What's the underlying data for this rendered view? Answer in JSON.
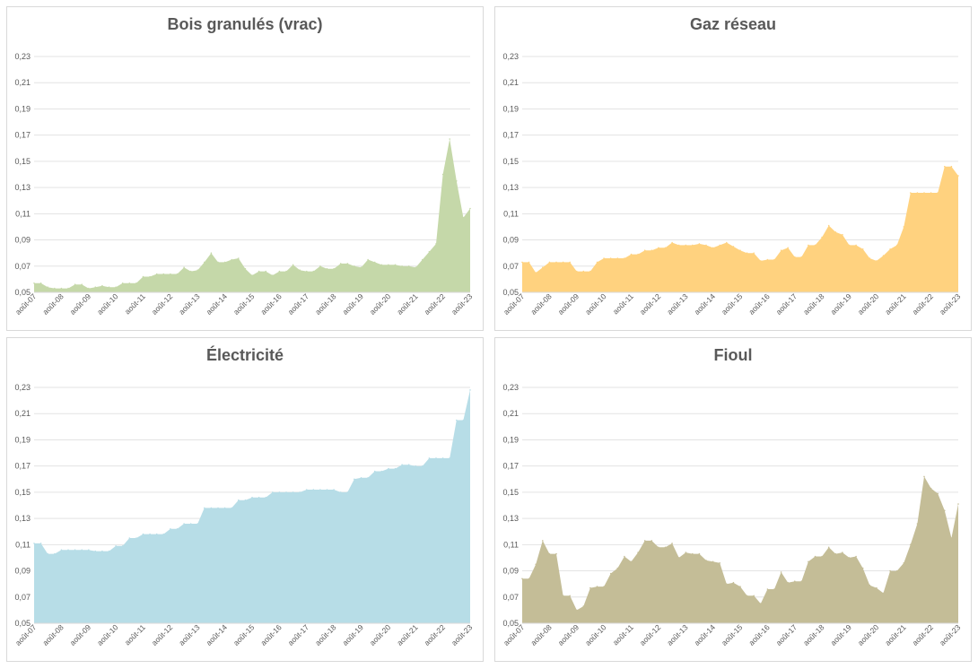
{
  "chart_data": [
    {
      "type": "area",
      "title": "Bois granulés (vrac)",
      "color": "#c5d8a9",
      "ylim": [
        0.05,
        0.23
      ],
      "yticks": [
        "0,05",
        "0,07",
        "0,09",
        "0,11",
        "0,13",
        "0,15",
        "0,17",
        "0,19",
        "0,21",
        "0,23"
      ],
      "xticks": [
        "août-07",
        "août-08",
        "août-09",
        "août-10",
        "août-11",
        "août-12",
        "août-13",
        "août-14",
        "août-15",
        "août-16",
        "août-17",
        "août-18",
        "août-19",
        "août-20",
        "août-21",
        "août-22",
        "août-23"
      ],
      "grid": true,
      "x": [
        0,
        0.25,
        0.5,
        0.75,
        1,
        1.25,
        1.5,
        1.75,
        2,
        2.25,
        2.5,
        2.75,
        3,
        3.25,
        3.5,
        3.75,
        4,
        4.25,
        4.5,
        4.75,
        5,
        5.25,
        5.5,
        5.75,
        6,
        6.25,
        6.5,
        6.75,
        7,
        7.25,
        7.5,
        7.75,
        8,
        8.25,
        8.5,
        8.75,
        9,
        9.25,
        9.5,
        9.75,
        10,
        10.25,
        10.5,
        10.75,
        11,
        11.25,
        11.5,
        11.75,
        12,
        12.25,
        12.5,
        12.75,
        13,
        13.25,
        13.5,
        13.75,
        14,
        14.25,
        14.5,
        14.75,
        15,
        15.25,
        15.5,
        15.75,
        16
      ],
      "values": [
        0.057,
        0.057,
        0.054,
        0.053,
        0.053,
        0.053,
        0.056,
        0.056,
        0.053,
        0.054,
        0.055,
        0.054,
        0.054,
        0.057,
        0.057,
        0.057,
        0.062,
        0.062,
        0.064,
        0.064,
        0.064,
        0.064,
        0.069,
        0.066,
        0.067,
        0.073,
        0.08,
        0.073,
        0.073,
        0.075,
        0.076,
        0.068,
        0.063,
        0.066,
        0.066,
        0.063,
        0.066,
        0.066,
        0.071,
        0.067,
        0.066,
        0.066,
        0.07,
        0.068,
        0.068,
        0.072,
        0.072,
        0.07,
        0.069,
        0.075,
        0.073,
        0.071,
        0.071,
        0.071,
        0.07,
        0.07,
        0.069,
        0.075,
        0.081,
        0.087,
        0.14,
        0.167,
        0.135,
        0.107,
        0.114
      ]
    },
    {
      "type": "area",
      "title": "Gaz réseau",
      "color": "#ffd27f",
      "ylim": [
        0.05,
        0.23
      ],
      "yticks": [
        "0,05",
        "0,07",
        "0,09",
        "0,11",
        "0,13",
        "0,15",
        "0,17",
        "0,19",
        "0,21",
        "0,23"
      ],
      "xticks": [
        "août-07",
        "août-08",
        "août-09",
        "août-10",
        "août-11",
        "août-12",
        "août-13",
        "août-14",
        "août-15",
        "août-16",
        "août-17",
        "août-18",
        "août-19",
        "août-20",
        "août-21",
        "août-22",
        "août-23"
      ],
      "grid": true,
      "x": [
        0,
        0.25,
        0.5,
        0.75,
        1,
        1.25,
        1.5,
        1.75,
        2,
        2.25,
        2.5,
        2.75,
        3,
        3.25,
        3.5,
        3.75,
        4,
        4.25,
        4.5,
        4.75,
        5,
        5.25,
        5.5,
        5.75,
        6,
        6.25,
        6.5,
        6.75,
        7,
        7.25,
        7.5,
        7.75,
        8,
        8.25,
        8.5,
        8.75,
        9,
        9.25,
        9.5,
        9.75,
        10,
        10.25,
        10.5,
        10.75,
        11,
        11.25,
        11.5,
        11.75,
        12,
        12.25,
        12.5,
        12.75,
        13,
        13.25,
        13.5,
        13.75,
        14,
        14.25,
        14.5,
        14.75,
        15,
        15.25,
        15.5,
        15.75,
        16
      ],
      "values": [
        0.073,
        0.073,
        0.065,
        0.069,
        0.073,
        0.073,
        0.073,
        0.073,
        0.066,
        0.066,
        0.066,
        0.073,
        0.076,
        0.076,
        0.076,
        0.076,
        0.079,
        0.079,
        0.082,
        0.082,
        0.084,
        0.084,
        0.088,
        0.086,
        0.086,
        0.086,
        0.087,
        0.086,
        0.084,
        0.086,
        0.088,
        0.085,
        0.082,
        0.08,
        0.08,
        0.074,
        0.075,
        0.075,
        0.082,
        0.084,
        0.077,
        0.077,
        0.086,
        0.086,
        0.092,
        0.101,
        0.096,
        0.094,
        0.086,
        0.086,
        0.083,
        0.076,
        0.074,
        0.078,
        0.083,
        0.086,
        0.1,
        0.126,
        0.126,
        0.126,
        0.126,
        0.126,
        0.146,
        0.146,
        0.139
      ]
    },
    {
      "type": "area",
      "title": "Électricité",
      "color": "#b7dde7",
      "ylim": [
        0.05,
        0.23
      ],
      "yticks": [
        "0,05",
        "0,07",
        "0,09",
        "0,11",
        "0,13",
        "0,15",
        "0,17",
        "0,19",
        "0,21",
        "0,23"
      ],
      "xticks": [
        "août-07",
        "août-08",
        "août-09",
        "août-10",
        "août-11",
        "août-12",
        "août-13",
        "août-14",
        "août-15",
        "août-16",
        "août-17",
        "août-18",
        "août-19",
        "août-20",
        "août-21",
        "août-22",
        "août-23"
      ],
      "grid": true,
      "x": [
        0,
        0.25,
        0.5,
        0.75,
        1,
        1.25,
        1.5,
        1.75,
        2,
        2.25,
        2.5,
        2.75,
        3,
        3.25,
        3.5,
        3.75,
        4,
        4.25,
        4.5,
        4.75,
        5,
        5.25,
        5.5,
        5.75,
        6,
        6.25,
        6.5,
        6.75,
        7,
        7.25,
        7.5,
        7.75,
        8,
        8.25,
        8.5,
        8.75,
        9,
        9.25,
        9.5,
        9.75,
        10,
        10.25,
        10.5,
        10.75,
        11,
        11.25,
        11.5,
        11.75,
        12,
        12.25,
        12.5,
        12.75,
        13,
        13.25,
        13.5,
        13.75,
        14,
        14.25,
        14.5,
        14.75,
        15,
        15.25,
        15.5,
        15.75,
        16
      ],
      "values": [
        0.111,
        0.111,
        0.103,
        0.103,
        0.106,
        0.106,
        0.106,
        0.106,
        0.106,
        0.105,
        0.105,
        0.105,
        0.109,
        0.109,
        0.115,
        0.115,
        0.118,
        0.118,
        0.118,
        0.118,
        0.122,
        0.122,
        0.126,
        0.126,
        0.126,
        0.138,
        0.138,
        0.138,
        0.138,
        0.138,
        0.144,
        0.144,
        0.146,
        0.146,
        0.146,
        0.15,
        0.15,
        0.15,
        0.15,
        0.15,
        0.152,
        0.152,
        0.152,
        0.152,
        0.152,
        0.15,
        0.15,
        0.16,
        0.161,
        0.161,
        0.166,
        0.166,
        0.168,
        0.168,
        0.171,
        0.171,
        0.17,
        0.17,
        0.176,
        0.176,
        0.176,
        0.176,
        0.205,
        0.205,
        0.228
      ]
    },
    {
      "type": "area",
      "title": "Fioul",
      "color": "#c4bd97",
      "ylim": [
        0.05,
        0.23
      ],
      "yticks": [
        "0,05",
        "0,07",
        "0,09",
        "0,11",
        "0,13",
        "0,15",
        "0,17",
        "0,19",
        "0,21",
        "0,23"
      ],
      "xticks": [
        "août-07",
        "août-08",
        "août-09",
        "août-10",
        "août-11",
        "août-12",
        "août-13",
        "août-14",
        "août-15",
        "août-16",
        "août-17",
        "août-18",
        "août-19",
        "août-20",
        "août-21",
        "août-22",
        "août-23"
      ],
      "grid": true,
      "x": [
        0,
        0.25,
        0.5,
        0.75,
        1,
        1.25,
        1.5,
        1.75,
        2,
        2.25,
        2.5,
        2.75,
        3,
        3.25,
        3.5,
        3.75,
        4,
        4.25,
        4.5,
        4.75,
        5,
        5.25,
        5.5,
        5.75,
        6,
        6.25,
        6.5,
        6.75,
        7,
        7.25,
        7.5,
        7.75,
        8,
        8.25,
        8.5,
        8.75,
        9,
        9.25,
        9.5,
        9.75,
        10,
        10.25,
        10.5,
        10.75,
        11,
        11.25,
        11.5,
        11.75,
        12,
        12.25,
        12.5,
        12.75,
        13,
        13.25,
        13.5,
        13.75,
        14,
        14.25,
        14.5,
        14.75,
        15,
        15.25,
        15.5,
        15.75,
        16
      ],
      "values": [
        0.084,
        0.084,
        0.095,
        0.113,
        0.103,
        0.103,
        0.071,
        0.071,
        0.06,
        0.063,
        0.077,
        0.078,
        0.078,
        0.088,
        0.092,
        0.101,
        0.097,
        0.104,
        0.113,
        0.113,
        0.108,
        0.108,
        0.111,
        0.1,
        0.104,
        0.103,
        0.103,
        0.098,
        0.097,
        0.096,
        0.08,
        0.081,
        0.078,
        0.071,
        0.071,
        0.065,
        0.076,
        0.076,
        0.089,
        0.081,
        0.082,
        0.082,
        0.097,
        0.101,
        0.101,
        0.108,
        0.103,
        0.104,
        0.1,
        0.101,
        0.092,
        0.079,
        0.077,
        0.073,
        0.09,
        0.09,
        0.096,
        0.11,
        0.126,
        0.162,
        0.153,
        0.149,
        0.136,
        0.115,
        0.141
      ]
    }
  ]
}
